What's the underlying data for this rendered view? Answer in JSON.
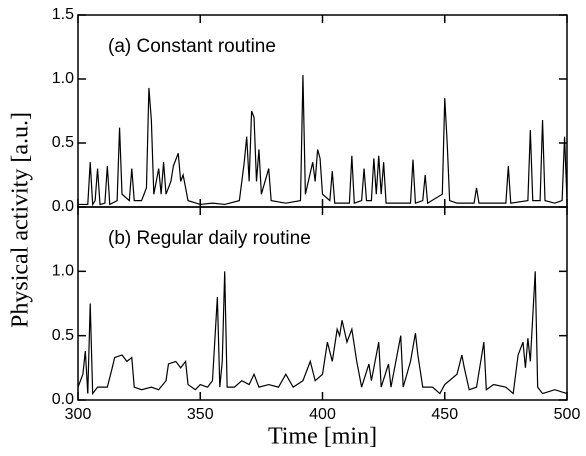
{
  "chart_data": [
    {
      "type": "line",
      "annotation": "(a) Constant routine",
      "ylabel": "Physical activity [a.u.]",
      "xlim": [
        300,
        500
      ],
      "ylim": [
        0,
        1.5
      ],
      "yticks": [
        {
          "value": 0,
          "label": "0.0"
        },
        0.5,
        {
          "value": 1,
          "label": "1.0"
        },
        1.5
      ],
      "color": "#000000",
      "x": [
        300,
        304,
        305,
        306,
        307,
        308,
        309,
        311,
        312,
        313,
        316,
        317,
        318,
        321,
        322,
        323,
        326,
        328,
        329,
        330,
        331,
        333,
        334,
        335,
        336,
        338,
        339,
        341,
        342,
        343,
        345,
        350,
        355,
        360,
        366,
        368,
        369,
        370,
        371,
        372,
        373,
        374,
        375,
        378,
        379,
        385,
        391,
        392,
        393,
        396,
        397,
        398,
        399,
        400,
        403,
        404,
        405,
        411,
        412,
        413,
        416,
        417,
        418,
        420,
        421,
        422,
        423,
        424,
        425,
        426,
        430,
        436,
        437,
        438,
        441,
        442,
        443,
        449,
        450,
        451,
        452,
        455,
        462,
        463,
        464,
        470,
        475,
        476,
        477,
        484,
        485,
        486,
        489,
        490,
        491,
        495,
        498,
        499,
        500
      ],
      "values": [
        0.02,
        0.02,
        0.35,
        0.02,
        0.05,
        0.3,
        0.02,
        0.03,
        0.32,
        0.02,
        0.05,
        0.62,
        0.1,
        0.05,
        0.3,
        0.05,
        0.05,
        0.15,
        0.93,
        0.68,
        0.1,
        0.3,
        0.1,
        0.35,
        0.1,
        0.2,
        0.32,
        0.42,
        0.2,
        0.25,
        0.05,
        0.02,
        0.03,
        0.02,
        0.05,
        0.35,
        0.55,
        0.2,
        0.75,
        0.7,
        0.2,
        0.45,
        0.1,
        0.3,
        0.05,
        0.03,
        0.05,
        1.03,
        0.1,
        0.35,
        0.2,
        0.45,
        0.38,
        0.1,
        0.05,
        0.28,
        0.03,
        0.03,
        0.4,
        0.03,
        0.05,
        0.3,
        0.05,
        0.05,
        0.38,
        0.1,
        0.4,
        0.1,
        0.35,
        0.03,
        0.03,
        0.03,
        0.37,
        0.03,
        0.05,
        0.25,
        0.03,
        0.1,
        0.85,
        0.5,
        0.05,
        0.03,
        0.03,
        0.15,
        0.03,
        0.03,
        0.03,
        0.32,
        0.03,
        0.05,
        0.6,
        0.05,
        0.05,
        0.68,
        0.05,
        0.03,
        0.05,
        0.55,
        0.05
      ]
    },
    {
      "type": "line",
      "annotation": "(b) Regular daily routine",
      "xlabel": "Time [min]",
      "xlim": [
        300,
        500
      ],
      "ylim": [
        0,
        1.5
      ],
      "xticks": [
        300,
        350,
        400,
        450,
        500
      ],
      "yticks": [
        {
          "value": 0,
          "label": "0.0"
        },
        0.5,
        {
          "value": 1,
          "label": "1.0"
        }
      ],
      "color": "#000000",
      "x": [
        300,
        302,
        303,
        304,
        305,
        306,
        308,
        312,
        314,
        315,
        318,
        320,
        322,
        323,
        326,
        330,
        333,
        336,
        337,
        340,
        342,
        344,
        345,
        348,
        350,
        353,
        355,
        357,
        358,
        359,
        360,
        361,
        364,
        367,
        370,
        372,
        374,
        378,
        382,
        385,
        388,
        392,
        395,
        397,
        400,
        402,
        404,
        406,
        407,
        408,
        410,
        412,
        414,
        416,
        419,
        420,
        423,
        424,
        427,
        428,
        430,
        432,
        433,
        436,
        438,
        439,
        441,
        445,
        448,
        450,
        455,
        457,
        458,
        460,
        463,
        466,
        467,
        470,
        475,
        478,
        480,
        482,
        483,
        484,
        485,
        487,
        488,
        490,
        495,
        500
      ],
      "values": [
        0.1,
        0.2,
        0.38,
        0.05,
        0.75,
        0.05,
        0.1,
        0.1,
        0.25,
        0.33,
        0.35,
        0.3,
        0.33,
        0.1,
        0.08,
        0.1,
        0.08,
        0.15,
        0.28,
        0.3,
        0.25,
        0.3,
        0.12,
        0.08,
        0.12,
        0.1,
        0.15,
        0.8,
        0.1,
        0.3,
        1.0,
        0.1,
        0.1,
        0.15,
        0.12,
        0.2,
        0.1,
        0.12,
        0.1,
        0.2,
        0.1,
        0.15,
        0.3,
        0.15,
        0.2,
        0.45,
        0.3,
        0.55,
        0.5,
        0.62,
        0.45,
        0.55,
        0.3,
        0.1,
        0.28,
        0.15,
        0.45,
        0.1,
        0.28,
        0.1,
        0.3,
        0.5,
        0.1,
        0.3,
        0.52,
        0.35,
        0.1,
        0.1,
        0.05,
        0.12,
        0.2,
        0.35,
        0.25,
        0.08,
        0.1,
        0.45,
        0.08,
        0.12,
        0.1,
        0.05,
        0.35,
        0.45,
        0.25,
        0.48,
        0.3,
        1.0,
        0.1,
        0.05,
        0.08,
        0.05
      ]
    }
  ]
}
